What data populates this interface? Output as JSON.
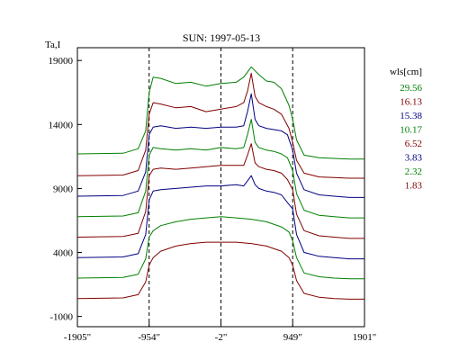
{
  "chart_data": {
    "type": "line",
    "title": "SUN: 1997-05-13",
    "ylabel": "Ta,I",
    "xlabel": "",
    "xlim": [
      -1905,
      1901
    ],
    "ylim": [
      -1800,
      20000
    ],
    "x_ticks": [
      {
        "value": -1905,
        "label": "-1905\""
      },
      {
        "value": -954,
        "label": "-954\""
      },
      {
        "value": -2,
        "label": "-2\""
      },
      {
        "value": 949,
        "label": "949\""
      },
      {
        "value": 1901,
        "label": "1901\""
      }
    ],
    "y_ticks": [
      {
        "value": 19000,
        "label": "19000"
      },
      {
        "value": 14000,
        "label": "14000"
      },
      {
        "value": 9000,
        "label": "9000"
      },
      {
        "value": 4000,
        "label": "4000"
      },
      {
        "value": -1000,
        "label": "-1000"
      }
    ],
    "vlines": [
      -954,
      -2,
      949
    ],
    "legend": {
      "title": "wls[cm]",
      "placement": "right"
    },
    "series": [
      {
        "name": "29.56",
        "color": "#008000",
        "x": [
          -1905,
          -1300,
          -1100,
          -1000,
          -954,
          -900,
          -800,
          -600,
          -400,
          -200,
          -2,
          200,
          300,
          400,
          500,
          600,
          700,
          800,
          900,
          949,
          1000,
          1100,
          1300,
          1500,
          1700,
          1901
        ],
        "y": [
          11700,
          11750,
          12100,
          13500,
          16500,
          17700,
          17600,
          17200,
          17300,
          17000,
          17200,
          17300,
          17700,
          18500,
          17900,
          17400,
          17300,
          16800,
          15500,
          14400,
          12800,
          11600,
          11400,
          11350,
          11300,
          11300
        ]
      },
      {
        "name": "16.13",
        "color": "#800000",
        "x": [
          -1905,
          -1300,
          -1100,
          -1000,
          -954,
          -900,
          -800,
          -600,
          -400,
          -200,
          -2,
          200,
          300,
          350,
          400,
          450,
          500,
          600,
          700,
          800,
          900,
          949,
          1000,
          1100,
          1300,
          1500,
          1700,
          1901
        ],
        "y": [
          10000,
          10050,
          10400,
          12000,
          14800,
          15700,
          15600,
          15300,
          15400,
          15000,
          15200,
          15400,
          15700,
          16600,
          18000,
          16200,
          15700,
          15400,
          15200,
          14800,
          13700,
          12600,
          11200,
          10200,
          9900,
          9850,
          9800,
          9800
        ]
      },
      {
        "name": "15.38",
        "color": "#000080",
        "x": [
          -1905,
          -1300,
          -1100,
          -1000,
          -954,
          -900,
          -800,
          -600,
          -400,
          -200,
          -2,
          200,
          300,
          350,
          400,
          450,
          500,
          600,
          700,
          800,
          880,
          949,
          1000,
          1100,
          1300,
          1500,
          1700,
          1901
        ],
        "y": [
          8400,
          8450,
          8800,
          10300,
          13200,
          13800,
          13900,
          13700,
          13800,
          13700,
          13800,
          13800,
          13900,
          15000,
          16400,
          14400,
          13900,
          13700,
          13600,
          13500,
          13200,
          12000,
          10200,
          8900,
          8500,
          8400,
          8300,
          8300
        ]
      },
      {
        "name": "10.17",
        "color": "#008000",
        "x": [
          -1905,
          -1300,
          -1100,
          -1000,
          -954,
          -900,
          -800,
          -600,
          -400,
          -200,
          -2,
          200,
          300,
          350,
          400,
          450,
          500,
          600,
          700,
          800,
          880,
          949,
          1000,
          1100,
          1300,
          1500,
          1700,
          1901
        ],
        "y": [
          6800,
          6850,
          7100,
          8800,
          11600,
          12200,
          12100,
          12000,
          12100,
          12000,
          12200,
          12100,
          12200,
          13200,
          14400,
          12600,
          12200,
          12000,
          11900,
          11700,
          11400,
          10400,
          8600,
          7300,
          6900,
          6800,
          6700,
          6700
        ]
      },
      {
        "name": "6.52",
        "color": "#800000",
        "x": [
          -1905,
          -1300,
          -1100,
          -1000,
          -954,
          -900,
          -800,
          -600,
          -400,
          -200,
          -2,
          200,
          300,
          350,
          400,
          450,
          500,
          600,
          700,
          800,
          880,
          949,
          1000,
          1100,
          1300,
          1500,
          1700,
          1901
        ],
        "y": [
          5200,
          5250,
          5500,
          7200,
          10000,
          10500,
          10600,
          10500,
          10600,
          10700,
          10800,
          10800,
          10800,
          11600,
          12500,
          11000,
          10700,
          10500,
          10400,
          10200,
          9700,
          8900,
          7000,
          5700,
          5300,
          5200,
          5100,
          5100
        ]
      },
      {
        "name": "3.83",
        "color": "#000080",
        "x": [
          -1905,
          -1300,
          -1100,
          -1000,
          -954,
          -900,
          -800,
          -600,
          -400,
          -200,
          -2,
          200,
          300,
          350,
          400,
          450,
          500,
          600,
          700,
          800,
          880,
          949,
          1000,
          1100,
          1300,
          1500,
          1700,
          1901
        ],
        "y": [
          3600,
          3650,
          3900,
          5400,
          8100,
          8800,
          8900,
          9000,
          9100,
          9200,
          9200,
          9300,
          9200,
          9600,
          10000,
          9300,
          9000,
          8800,
          8700,
          8500,
          7900,
          7400,
          5400,
          4000,
          3700,
          3600,
          3500,
          3500
        ]
      },
      {
        "name": "2.32",
        "color": "#008000",
        "x": [
          -1905,
          -1300,
          -1100,
          -1000,
          -954,
          -900,
          -800,
          -600,
          -400,
          -200,
          -2,
          200,
          400,
          600,
          800,
          900,
          949,
          1000,
          1100,
          1300,
          1500,
          1700,
          1901
        ],
        "y": [
          2000,
          2050,
          2300,
          3500,
          5200,
          5700,
          6100,
          6400,
          6600,
          6700,
          6800,
          6700,
          6600,
          6400,
          6000,
          5600,
          4900,
          3600,
          2400,
          2100,
          2000,
          1950,
          1950
        ]
      },
      {
        "name": "1.83",
        "color": "#800000",
        "x": [
          -1905,
          -1300,
          -1100,
          -1000,
          -954,
          -900,
          -800,
          -600,
          -400,
          -200,
          -2,
          200,
          400,
          600,
          800,
          900,
          949,
          1000,
          1100,
          1300,
          1500,
          1700,
          1901
        ],
        "y": [
          400,
          450,
          700,
          1700,
          3000,
          3600,
          4100,
          4500,
          4700,
          4800,
          4800,
          4800,
          4700,
          4500,
          4100,
          3600,
          3000,
          1800,
          800,
          500,
          400,
          350,
          350
        ]
      }
    ]
  }
}
